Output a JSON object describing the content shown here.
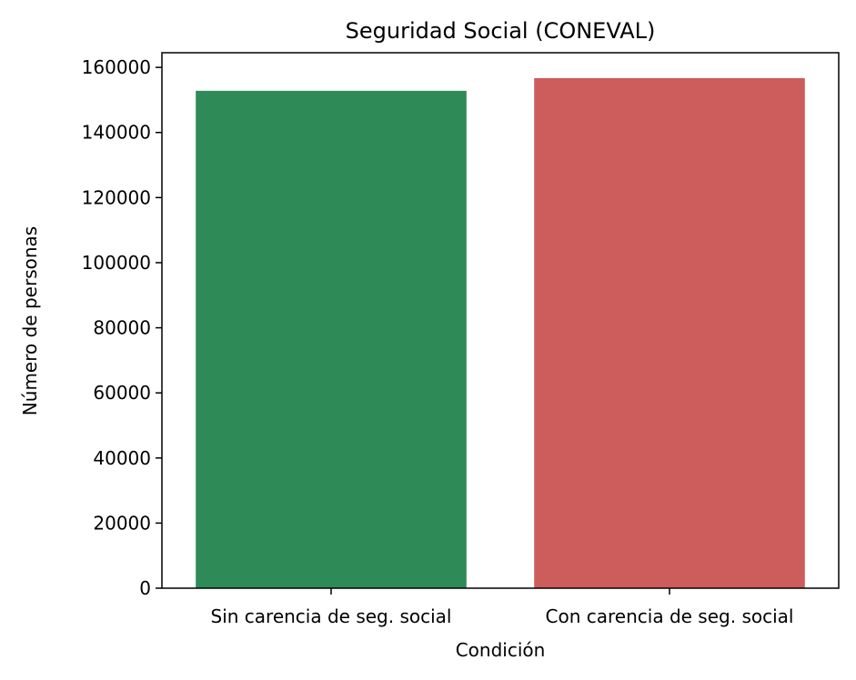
{
  "chart_data": {
    "type": "bar",
    "title": "Seguridad Social (CONEVAL)",
    "xlabel": "Condición",
    "ylabel": "Número de personas",
    "categories": [
      "Sin carencia de seg. social",
      "Con carencia de seg. social"
    ],
    "values": [
      152800,
      156700
    ],
    "colors": [
      "#2e8b57",
      "#cd5c5c"
    ],
    "ylim": [
      0,
      164500
    ],
    "yticks": [
      0,
      20000,
      40000,
      60000,
      80000,
      100000,
      120000,
      140000,
      160000
    ],
    "grid": false,
    "legend": "none"
  }
}
